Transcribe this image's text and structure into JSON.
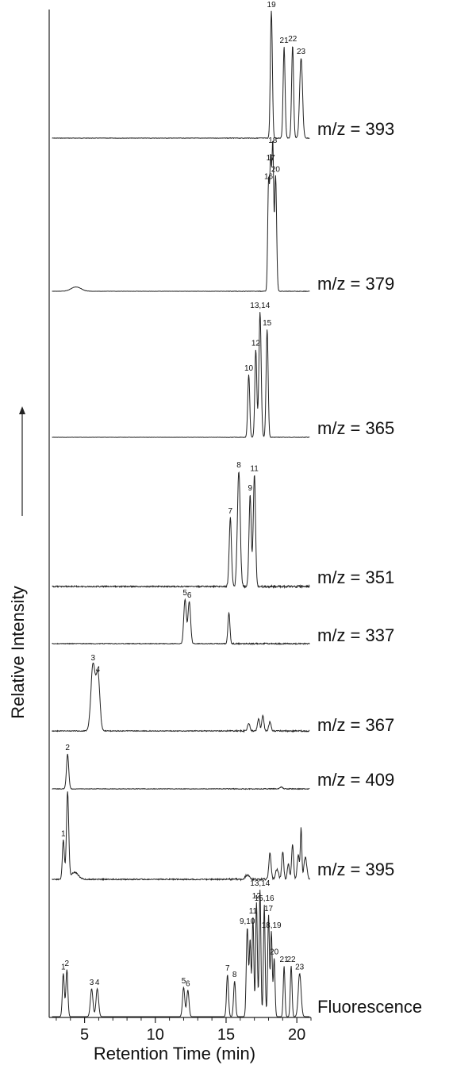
{
  "chart_data": {
    "type": "line",
    "xlabel": "Retention Time (min)",
    "ylabel": "Relative Intensity",
    "xlim": [
      2.5,
      21
    ],
    "x_ticks": [
      5,
      10,
      15,
      20
    ],
    "grid": false,
    "traces": [
      {
        "label": "m/z = 393",
        "peaks": [
          {
            "rt": 18.2,
            "h": 1.0,
            "w": 0.07,
            "label": "19"
          },
          {
            "rt": 19.1,
            "h": 0.72,
            "w": 0.07,
            "label": "21"
          },
          {
            "rt": 19.7,
            "h": 0.73,
            "w": 0.07,
            "label": "22"
          },
          {
            "rt": 20.3,
            "h": 0.63,
            "w": 0.1,
            "label": "23"
          }
        ]
      },
      {
        "label": "m/z = 379",
        "peaks": [
          {
            "rt": 4.4,
            "h": 0.03,
            "w": 0.35,
            "label": ""
          },
          {
            "rt": 18.0,
            "h": 0.75,
            "w": 0.06,
            "label": "16"
          },
          {
            "rt": 18.15,
            "h": 0.88,
            "w": 0.06,
            "label": "17"
          },
          {
            "rt": 18.3,
            "h": 1.0,
            "w": 0.06,
            "label": "18"
          },
          {
            "rt": 18.5,
            "h": 0.8,
            "w": 0.07,
            "label": "20"
          }
        ]
      },
      {
        "label": "m/z = 365",
        "peaks": [
          {
            "rt": 16.6,
            "h": 0.5,
            "w": 0.07,
            "label": "10"
          },
          {
            "rt": 17.1,
            "h": 0.7,
            "w": 0.07,
            "label": "12"
          },
          {
            "rt": 17.4,
            "h": 1.0,
            "w": 0.08,
            "label": "13,14"
          },
          {
            "rt": 17.9,
            "h": 0.86,
            "w": 0.07,
            "label": "15"
          }
        ]
      },
      {
        "label": "m/z = 351",
        "peaks": [
          {
            "rt": 15.3,
            "h": 0.6,
            "w": 0.08,
            "label": "7"
          },
          {
            "rt": 15.9,
            "h": 1.0,
            "w": 0.1,
            "label": "8"
          },
          {
            "rt": 16.7,
            "h": 0.8,
            "w": 0.08,
            "label": "9"
          },
          {
            "rt": 17.0,
            "h": 0.97,
            "w": 0.08,
            "label": "11"
          }
        ]
      },
      {
        "label": "m/z = 337",
        "peaks": [
          {
            "rt": 12.1,
            "h": 0.98,
            "w": 0.09,
            "label": "5"
          },
          {
            "rt": 12.4,
            "h": 0.93,
            "w": 0.09,
            "label": "6"
          },
          {
            "rt": 15.2,
            "h": 0.68,
            "w": 0.07,
            "label": ""
          }
        ]
      },
      {
        "label": "m/z = 367",
        "peaks": [
          {
            "rt": 5.6,
            "h": 1.0,
            "w": 0.15,
            "label": "3"
          },
          {
            "rt": 5.95,
            "h": 0.83,
            "w": 0.13,
            "label": "4"
          },
          {
            "rt": 16.6,
            "h": 0.12,
            "w": 0.08,
            "label": ""
          },
          {
            "rt": 17.3,
            "h": 0.18,
            "w": 0.08,
            "label": ""
          },
          {
            "rt": 17.6,
            "h": 0.24,
            "w": 0.07,
            "label": ""
          },
          {
            "rt": 18.1,
            "h": 0.14,
            "w": 0.08,
            "label": ""
          }
        ]
      },
      {
        "label": "m/z = 409",
        "peaks": [
          {
            "rt": 3.8,
            "h": 1.0,
            "w": 0.08,
            "label": "2"
          },
          {
            "rt": 18.9,
            "h": 0.05,
            "w": 0.1,
            "label": ""
          }
        ]
      },
      {
        "label": "m/z = 395",
        "peaks": [
          {
            "rt": 3.5,
            "h": 0.45,
            "w": 0.07,
            "label": "1"
          },
          {
            "rt": 3.8,
            "h": 1.0,
            "w": 0.08,
            "label": ""
          },
          {
            "rt": 4.3,
            "h": 0.08,
            "w": 0.25,
            "label": ""
          },
          {
            "rt": 16.5,
            "h": 0.05,
            "w": 0.15,
            "label": ""
          },
          {
            "rt": 18.1,
            "h": 0.3,
            "w": 0.08,
            "label": ""
          },
          {
            "rt": 18.6,
            "h": 0.12,
            "w": 0.1,
            "label": ""
          },
          {
            "rt": 19.0,
            "h": 0.32,
            "w": 0.07,
            "label": ""
          },
          {
            "rt": 19.4,
            "h": 0.18,
            "w": 0.07,
            "label": ""
          },
          {
            "rt": 19.7,
            "h": 0.4,
            "w": 0.07,
            "label": ""
          },
          {
            "rt": 20.1,
            "h": 0.28,
            "w": 0.08,
            "label": ""
          },
          {
            "rt": 20.3,
            "h": 0.58,
            "w": 0.05,
            "label": ""
          },
          {
            "rt": 20.6,
            "h": 0.25,
            "w": 0.1,
            "label": ""
          }
        ]
      },
      {
        "label": "Fluorescence",
        "peaks": [
          {
            "rt": 3.5,
            "h": 0.34,
            "w": 0.07,
            "label": "1"
          },
          {
            "rt": 3.75,
            "h": 0.37,
            "w": 0.07,
            "label": "2"
          },
          {
            "rt": 5.5,
            "h": 0.22,
            "w": 0.09,
            "label": "3"
          },
          {
            "rt": 5.9,
            "h": 0.22,
            "w": 0.09,
            "label": "4"
          },
          {
            "rt": 12.0,
            "h": 0.23,
            "w": 0.08,
            "label": "5"
          },
          {
            "rt": 12.3,
            "h": 0.21,
            "w": 0.08,
            "label": "6"
          },
          {
            "rt": 15.1,
            "h": 0.33,
            "w": 0.07,
            "label": "7"
          },
          {
            "rt": 15.6,
            "h": 0.28,
            "w": 0.07,
            "label": "8"
          },
          {
            "rt": 16.5,
            "h": 0.7,
            "w": 0.07,
            "label": "9,10"
          },
          {
            "rt": 16.7,
            "h": 0.6,
            "w": 0.06,
            "label": ""
          },
          {
            "rt": 16.9,
            "h": 0.78,
            "w": 0.06,
            "label": "11"
          },
          {
            "rt": 17.15,
            "h": 0.9,
            "w": 0.06,
            "label": "12"
          },
          {
            "rt": 17.4,
            "h": 1.0,
            "w": 0.06,
            "label": "13,14"
          },
          {
            "rt": 17.7,
            "h": 0.88,
            "w": 0.06,
            "label": "15,16"
          },
          {
            "rt": 18.0,
            "h": 0.8,
            "w": 0.06,
            "label": "17"
          },
          {
            "rt": 18.2,
            "h": 0.67,
            "w": 0.06,
            "label": "18,19"
          },
          {
            "rt": 18.4,
            "h": 0.46,
            "w": 0.06,
            "label": "20"
          },
          {
            "rt": 19.1,
            "h": 0.4,
            "w": 0.06,
            "label": "21"
          },
          {
            "rt": 19.6,
            "h": 0.4,
            "w": 0.06,
            "label": "22"
          },
          {
            "rt": 20.2,
            "h": 0.34,
            "w": 0.1,
            "label": "23"
          }
        ]
      }
    ]
  }
}
